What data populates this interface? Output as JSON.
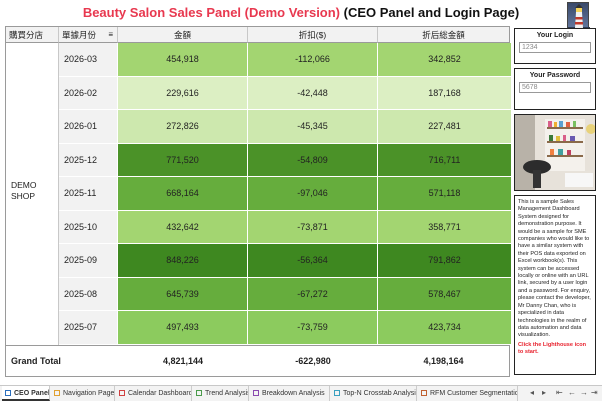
{
  "header": {
    "title_colored": "Beauty Salon Sales Panel (Demo Version)",
    "title_rest": "(CEO Panel and Login Page)"
  },
  "table": {
    "col_shop": "購買分店",
    "col_month": "單據月份",
    "col_amount": "金額",
    "col_discount": "折扣($)",
    "col_net": "折后総金額",
    "shop_name": "DEMO SHOP",
    "rows": [
      {
        "month": "2026-03",
        "amount": "454,918",
        "discount": "-112,066",
        "net": "342,852",
        "bg": "#a3d571"
      },
      {
        "month": "2026-02",
        "amount": "229,616",
        "discount": "-42,448",
        "net": "187,168",
        "bg": "#dcefc3"
      },
      {
        "month": "2026-01",
        "amount": "272,826",
        "discount": "-45,345",
        "net": "227,481",
        "bg": "#cde8ae"
      },
      {
        "month": "2025-12",
        "amount": "771,520",
        "discount": "-54,809",
        "net": "716,711",
        "bg": "#4b9228"
      },
      {
        "month": "2025-11",
        "amount": "668,164",
        "discount": "-97,046",
        "net": "571,118",
        "bg": "#66ad3d"
      },
      {
        "month": "2025-10",
        "amount": "432,642",
        "discount": "-73,871",
        "net": "358,771",
        "bg": "#a3d571"
      },
      {
        "month": "2025-09",
        "amount": "848,226",
        "discount": "-56,364",
        "net": "791,862",
        "bg": "#3e8820"
      },
      {
        "month": "2025-08",
        "amount": "645,739",
        "discount": "-67,272",
        "net": "578,467",
        "bg": "#66ad3d"
      },
      {
        "month": "2025-07",
        "amount": "497,493",
        "discount": "-73,759",
        "net": "423,734",
        "bg": "#8ccb5e"
      }
    ],
    "total_label": "Grand Total",
    "total_amount": "4,821,144",
    "total_discount": "-622,980",
    "total_net": "4,198,164"
  },
  "login": {
    "login_label": "Your Login",
    "login_value": "1234",
    "password_label": "Your Password",
    "password_value": "5678"
  },
  "info": {
    "text": "This is a sample Sales Management Dashboard System designed for demonstration purpose. It would be a sample for SME companies who would like to have a similar system with their POS data exported on Excel workbook(s). This system can be accessed locally or online with an URL link, secured by a user login and a password. For enquiry, please contact the developer, Mr Danny Chan, who is specialized in data technologies in the realm of data automation and data visualization.",
    "cta": "Click the Lighthouse icon to start."
  },
  "tabs": [
    {
      "label": "CEO Panel",
      "active": true,
      "color": "#2a6ebd"
    },
    {
      "label": "Navigation Page",
      "active": false,
      "color": "#e0a030"
    },
    {
      "label": "Calendar Dashboard",
      "active": false,
      "color": "#d04040"
    },
    {
      "label": "Trend Analysis",
      "active": false,
      "color": "#4a9a4a"
    },
    {
      "label": "Breakdown Analysis",
      "active": false,
      "color": "#8a4ab0"
    },
    {
      "label": "Top-N Crosstab Analysis",
      "active": false,
      "color": "#3aa0c0"
    },
    {
      "label": "RFM Customer Segmentatio...",
      "active": false,
      "color": "#c06030"
    }
  ],
  "icons": {
    "lighthouse": "lighthouse-icon",
    "filter": "filter-icon",
    "tab": "sheet-tab-icon"
  }
}
